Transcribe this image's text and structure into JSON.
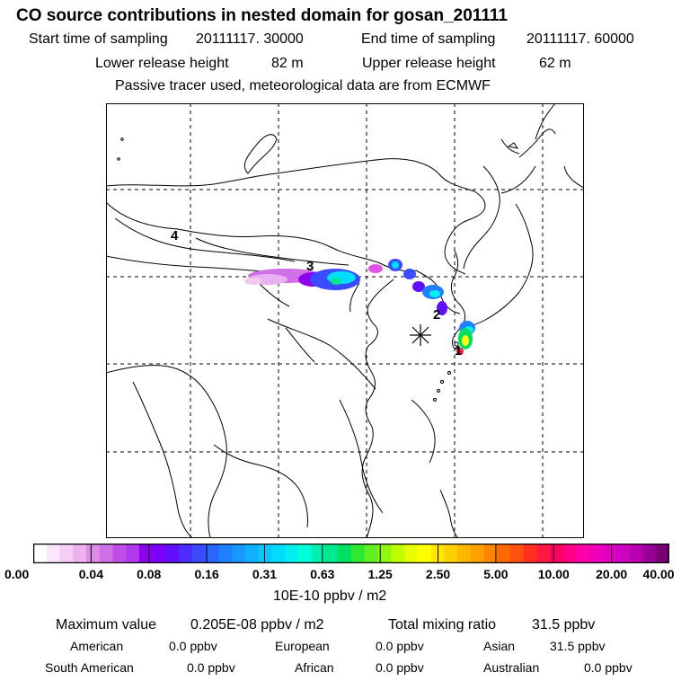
{
  "header": {
    "title": "CO  source contributions in nested domain for gosan_201111",
    "start_label": "Start time of sampling",
    "start_value": "20111117. 30000",
    "end_label": "End time of sampling",
    "end_value": "20111117. 60000",
    "lower_label": "Lower release height",
    "lower_value": "82 m",
    "upper_label": "Upper release height",
    "upper_value": "62 m",
    "note": "Passive tracer used, meteorological data are from ECMWF"
  },
  "map": {
    "region_labels": [
      "4",
      "3",
      "2",
      "1"
    ],
    "receptor_marker": "asterisk-icon"
  },
  "colorbar": {
    "ticks": [
      "0.00",
      "0.04",
      "0.08",
      "0.16",
      "0.31",
      "0.63",
      "1.25",
      "2.50",
      "5.00",
      "10.00",
      "20.00",
      "40.00"
    ],
    "unit": "10E-10 ppbv / m2",
    "colors": [
      "#ffffff",
      "#fbe6fb",
      "#f5cdf5",
      "#eeb3ee",
      "#df8ce8",
      "#d070e6",
      "#c04ee6",
      "#b03af0",
      "#9000f0",
      "#7a00f8",
      "#6010ff",
      "#4c2cff",
      "#3a4cff",
      "#2a64ff",
      "#2080ff",
      "#1898ff",
      "#10b0ff",
      "#08c8ff",
      "#00ddff",
      "#00f0f0",
      "#00ffd8",
      "#00f0b0",
      "#00e890",
      "#00e060",
      "#30e830",
      "#60f020",
      "#90f810",
      "#c0ff00",
      "#e8ff00",
      "#ffff00",
      "#ffe800",
      "#ffd000",
      "#ffb800",
      "#ffa000",
      "#ff8400",
      "#ff6a00",
      "#ff5010",
      "#ff3020",
      "#ff1840",
      "#ff0060",
      "#ff0088",
      "#ff00a8",
      "#f000b8",
      "#e000c0",
      "#d000c0",
      "#b800b0",
      "#980098",
      "#780070"
    ]
  },
  "stats": {
    "max_label": "Maximum value",
    "max_value": "0.205E-08 ppbv / m2",
    "total_label": "Total mixing ratio",
    "total_value": "31.5 ppbv",
    "regions": [
      {
        "name": "American",
        "value": "0.0 ppbv"
      },
      {
        "name": "European",
        "value": "0.0 ppbv"
      },
      {
        "name": "Asian",
        "value": "31.5 ppbv"
      },
      {
        "name": "South American",
        "value": "0.0 ppbv"
      },
      {
        "name": "African",
        "value": "0.0 ppbv"
      },
      {
        "name": "Australian",
        "value": "0.0 ppbv"
      }
    ]
  }
}
